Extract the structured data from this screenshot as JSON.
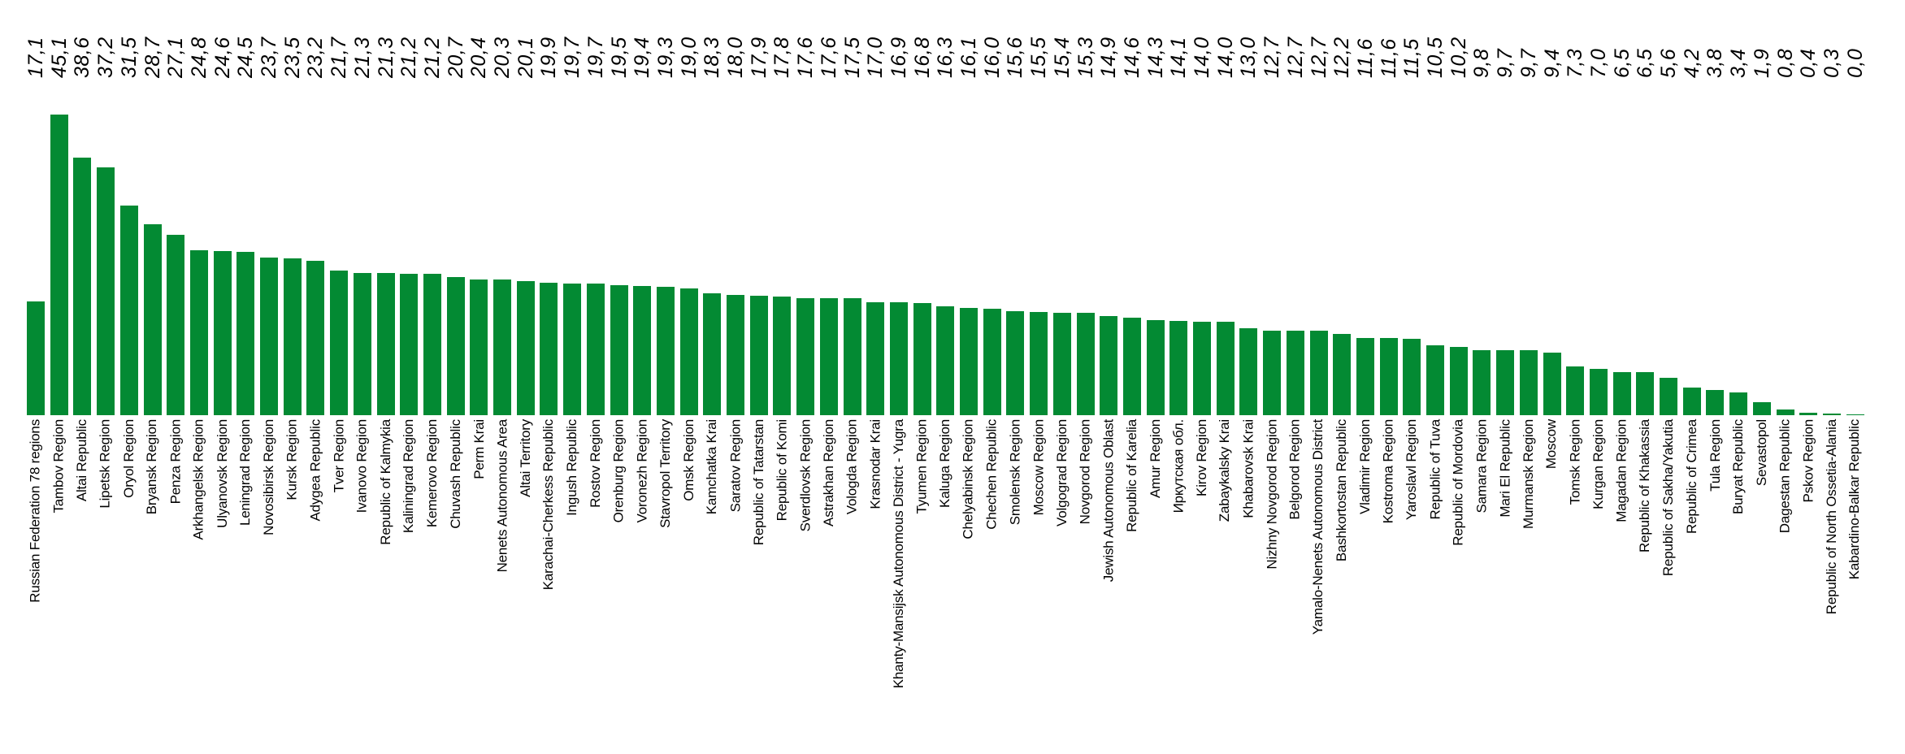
{
  "page": {
    "background_color": "#ffffff",
    "text_color": "#000000"
  },
  "chart_data": {
    "type": "bar",
    "orientation": "vertical",
    "title": "",
    "xlabel": "",
    "ylabel": "",
    "legend": "none",
    "grid": false,
    "axis_lines": false,
    "bar_color": "#038A33",
    "ylim": [
      0,
      45.1
    ],
    "value_label_position": "top-row-rotated-90-italic",
    "category_label_position": "below-baseline-rotated-90",
    "decimal_separator": ",",
    "categories": [
      "Russian Federation 78 regions",
      "Tambov Region",
      "Altai Republic",
      "Lipetsk Region",
      "Oryol Region",
      "Bryansk Region",
      "Penza Region",
      "Arkhangelsk Region",
      "Ulyanovsk Region",
      "Leningrad Region",
      "Novosibirsk Region",
      "Kursk Region",
      "Adygea Republic",
      "Tver Region",
      "Ivanovo Region",
      "Republic of Kalmykia",
      "Kaliningrad Region",
      "Kemerovo Region",
      "Chuvash Republic",
      "Perm Krai",
      "Nenets Autonomous Area",
      "Altai Territory",
      "Karachai-Cherkess Republic",
      "Ingush Republic",
      "Rostov Region",
      "Orenburg Region",
      "Voronezh Region",
      "Stavropol Territory",
      "Omsk Region",
      "Kamchatka Krai",
      "Saratov Region",
      "Republic of Tatarstan",
      "Republic of Komi",
      "Sverdlovsk Region",
      "Astrakhan Region",
      "Vologda Region",
      "Krasnodar Krai",
      "Khanty-Mansijsk Autonomous District - Yugra",
      "Tyumen Region",
      "Kaluga Region",
      "Chelyabinsk Region",
      "Chechen Republic",
      "Smolensk Region",
      "Moscow Region",
      "Volgograd Region",
      "Novgorod Region",
      "Jewish Autonomous Oblast",
      "Republic of Karelia",
      "Amur Region",
      "Иркутская обл.",
      "Kirov Region",
      "Zabaykalsky Krai",
      "Khabarovsk Krai",
      "Nizhny Novgorod Region",
      "Belgorod Region",
      "Yamalo-Nenets Autonomous District",
      "Bashkortostan Republic",
      "Vladimir Region",
      "Kostroma Region",
      "Yaroslavl Region",
      "Republic of Tuva",
      "Republic of Mordovia",
      "Samara Region",
      "Mari El Republic",
      "Murmansk Region",
      "Moscow",
      "Tomsk Region",
      "Kurgan Region",
      "Magadan Region",
      "Republic of Khakassia",
      "Republic of Sakha/Yakutia",
      "Republic of Crimea",
      "Tula Region",
      "Buryat Republic",
      "Sevastopol",
      "Dagestan Republic",
      "Pskov Region",
      "Republic of North Ossetia-Alania",
      "Kabardino-Balkar Republic"
    ],
    "values": [
      17.1,
      45.1,
      38.6,
      37.2,
      31.5,
      28.7,
      27.1,
      24.8,
      24.6,
      24.5,
      23.7,
      23.5,
      23.2,
      21.7,
      21.3,
      21.3,
      21.2,
      21.2,
      20.7,
      20.4,
      20.3,
      20.1,
      19.9,
      19.7,
      19.7,
      19.5,
      19.4,
      19.3,
      19.0,
      18.3,
      18.0,
      17.9,
      17.8,
      17.6,
      17.6,
      17.5,
      17.0,
      16.9,
      16.8,
      16.3,
      16.1,
      16.0,
      15.6,
      15.5,
      15.4,
      15.3,
      14.9,
      14.6,
      14.3,
      14.1,
      14.0,
      14.0,
      13.0,
      12.7,
      12.7,
      12.7,
      12.2,
      11.6,
      11.6,
      11.5,
      10.5,
      10.2,
      9.8,
      9.7,
      9.7,
      9.4,
      7.3,
      7.0,
      6.5,
      6.5,
      5.6,
      4.2,
      3.8,
      3.4,
      1.9,
      0.8,
      0.4,
      0.3,
      0.0
    ],
    "value_labels": [
      "17,1",
      "45,1",
      "38,6",
      "37,2",
      "31,5",
      "28,7",
      "27,1",
      "24,8",
      "24,6",
      "24,5",
      "23,7",
      "23,5",
      "23,2",
      "21,7",
      "21,3",
      "21,3",
      "21,2",
      "21,2",
      "20,7",
      "20,4",
      "20,3",
      "20,1",
      "19,9",
      "19,7",
      "19,7",
      "19,5",
      "19,4",
      "19,3",
      "19,0",
      "18,3",
      "18,0",
      "17,9",
      "17,8",
      "17,6",
      "17,6",
      "17,5",
      "17,0",
      "16,9",
      "16,8",
      "16,3",
      "16,1",
      "16,0",
      "15,6",
      "15,5",
      "15,4",
      "15,3",
      "14,9",
      "14,6",
      "14,3",
      "14,1",
      "14,0",
      "14,0",
      "13,0",
      "12,7",
      "12,7",
      "12,7",
      "12,2",
      "11,6",
      "11,6",
      "11,5",
      "10,5",
      "10,2",
      "9,8",
      "9,7",
      "9,7",
      "9,4",
      "7,3",
      "7,0",
      "6,5",
      "6,5",
      "5,6",
      "4,2",
      "3,8",
      "3,4",
      "1,9",
      "0,8",
      "0,4",
      "0,3",
      "0,0"
    ]
  }
}
